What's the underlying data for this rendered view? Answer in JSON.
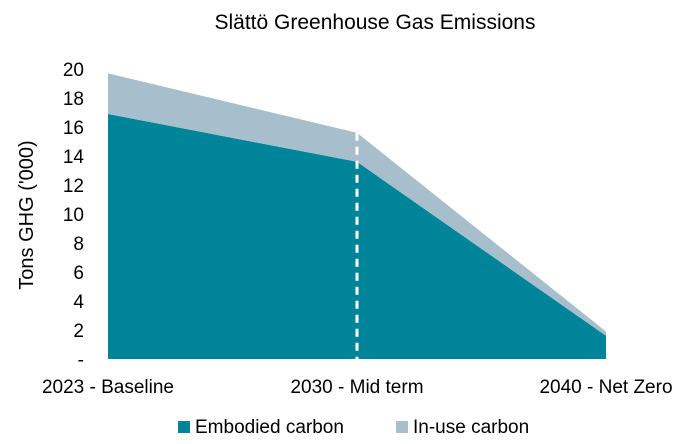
{
  "chart_data": {
    "type": "area",
    "stacked": true,
    "title": "Slättö Greenhouse Gas Emissions",
    "ylabel": "Tons GHG ('000)",
    "xlabel": "",
    "categories": [
      "2023 - Baseline",
      "2030 - Mid term",
      "2040 - Net Zero"
    ],
    "series": [
      {
        "name": "Embodied carbon",
        "values": [
          16.9,
          13.6,
          1.6
        ],
        "color": "#00849a"
      },
      {
        "name": "In-use carbon",
        "values": [
          2.8,
          2.0,
          0.3
        ],
        "color": "#a7bfcc"
      }
    ],
    "ylim": [
      0,
      20
    ],
    "yticks": [
      0,
      2,
      4,
      6,
      8,
      10,
      12,
      14,
      16,
      18,
      20
    ],
    "ytick_labels": [
      "-",
      "2",
      "4",
      "6",
      "8",
      "10",
      "12",
      "14",
      "16",
      "18",
      "20"
    ],
    "divider_at_category": "2030 - Mid term",
    "divider_style": "dashed-white",
    "grid": false,
    "legend": "bottom"
  }
}
